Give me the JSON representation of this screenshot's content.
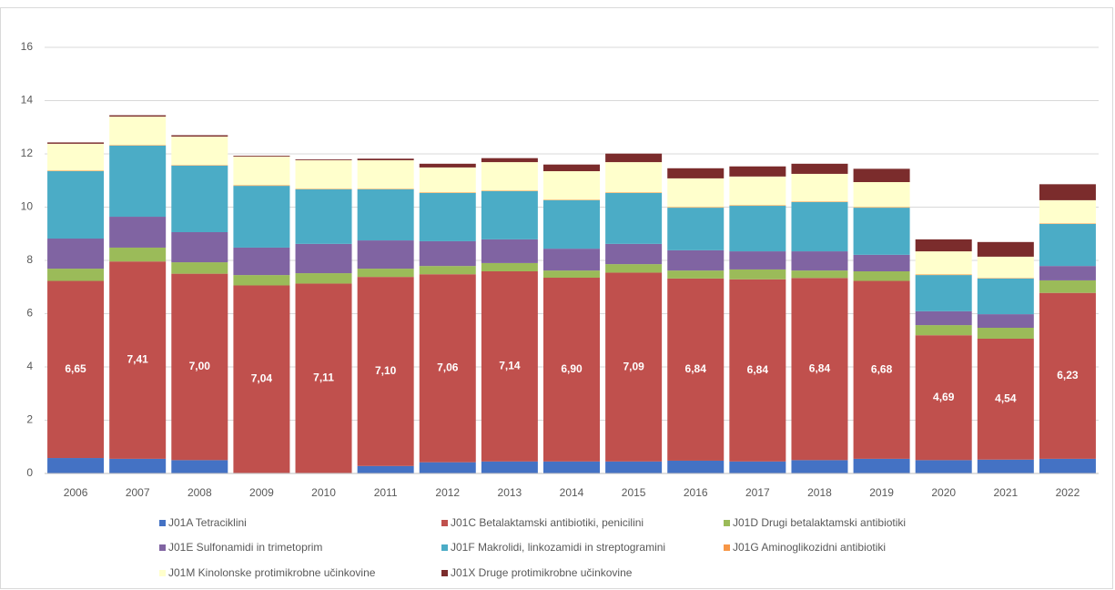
{
  "chart_data": {
    "type": "stacked_bar",
    "categories": [
      "2006",
      "2007",
      "2008",
      "2009",
      "2010",
      "2011",
      "2012",
      "2013",
      "2014",
      "2015",
      "2016",
      "2017",
      "2018",
      "2019",
      "2020",
      "2021",
      "2022"
    ],
    "series": [
      {
        "name": "J01A Tetraciklini",
        "color": "#4472c4",
        "values": [
          0.58,
          0.55,
          0.5,
          0.02,
          0.02,
          0.28,
          0.42,
          0.45,
          0.45,
          0.45,
          0.48,
          0.45,
          0.5,
          0.55,
          0.5,
          0.52,
          0.55
        ]
      },
      {
        "name": "J01C Betalaktamski antibiotiki, penicilini",
        "color": "#c0504d",
        "values": [
          6.65,
          7.41,
          7.0,
          7.04,
          7.11,
          7.1,
          7.06,
          7.14,
          6.9,
          7.09,
          6.84,
          6.84,
          6.84,
          6.68,
          4.69,
          4.54,
          6.23
        ],
        "value_labels": [
          "6,65",
          "7,41",
          "7,00",
          "7,04",
          "7,11",
          "7,10",
          "7,06",
          "7,14",
          "6,90",
          "7,09",
          "6,84",
          "6,84",
          "6,84",
          "6,68",
          "4,69",
          "4,54",
          "6,23"
        ]
      },
      {
        "name": "J01D Drugi betalaktamski antibiotiki",
        "color": "#9bbb59",
        "values": [
          0.46,
          0.52,
          0.43,
          0.39,
          0.39,
          0.31,
          0.31,
          0.31,
          0.27,
          0.32,
          0.3,
          0.37,
          0.28,
          0.36,
          0.38,
          0.41,
          0.47
        ]
      },
      {
        "name": "J01E Sulfonamidi in trimetoprim",
        "color": "#8064a2",
        "values": [
          1.13,
          1.16,
          1.13,
          1.03,
          1.1,
          1.06,
          0.93,
          0.89,
          0.82,
          0.76,
          0.76,
          0.68,
          0.72,
          0.62,
          0.52,
          0.51,
          0.54
        ]
      },
      {
        "name": "J01F Makrolidi, linkozamidi in streptogramini",
        "color": "#4bacc6",
        "values": [
          2.53,
          2.67,
          2.5,
          2.32,
          2.05,
          1.92,
          1.81,
          1.81,
          1.82,
          1.91,
          1.6,
          1.71,
          1.85,
          1.77,
          1.36,
          1.34,
          1.58
        ]
      },
      {
        "name": "J01G Aminoglikozidni antibiotiki",
        "color": "#f79646",
        "values": [
          0.02,
          0.02,
          0.02,
          0.02,
          0.02,
          0.02,
          0.02,
          0.02,
          0.02,
          0.02,
          0.02,
          0.02,
          0.02,
          0.02,
          0.02,
          0.02,
          0.02
        ]
      },
      {
        "name": "J01M Kinolonske protimikrobne učinkovine",
        "color": "#ffffcc",
        "values": [
          1.01,
          1.07,
          1.07,
          1.08,
          1.07,
          1.07,
          0.94,
          1.07,
          1.07,
          1.14,
          1.08,
          1.08,
          1.04,
          0.94,
          0.87,
          0.8,
          0.87
        ]
      },
      {
        "name": "J01X Druge protimikrobne učinkovine",
        "color": "#7b2c2c",
        "values": [
          0.05,
          0.05,
          0.05,
          0.03,
          0.03,
          0.06,
          0.14,
          0.15,
          0.25,
          0.32,
          0.38,
          0.38,
          0.38,
          0.5,
          0.45,
          0.55,
          0.6
        ]
      }
    ],
    "ylim": [
      0,
      16
    ],
    "yticks": [
      0,
      2,
      4,
      6,
      8,
      10,
      12,
      14,
      16
    ],
    "grid": true
  }
}
